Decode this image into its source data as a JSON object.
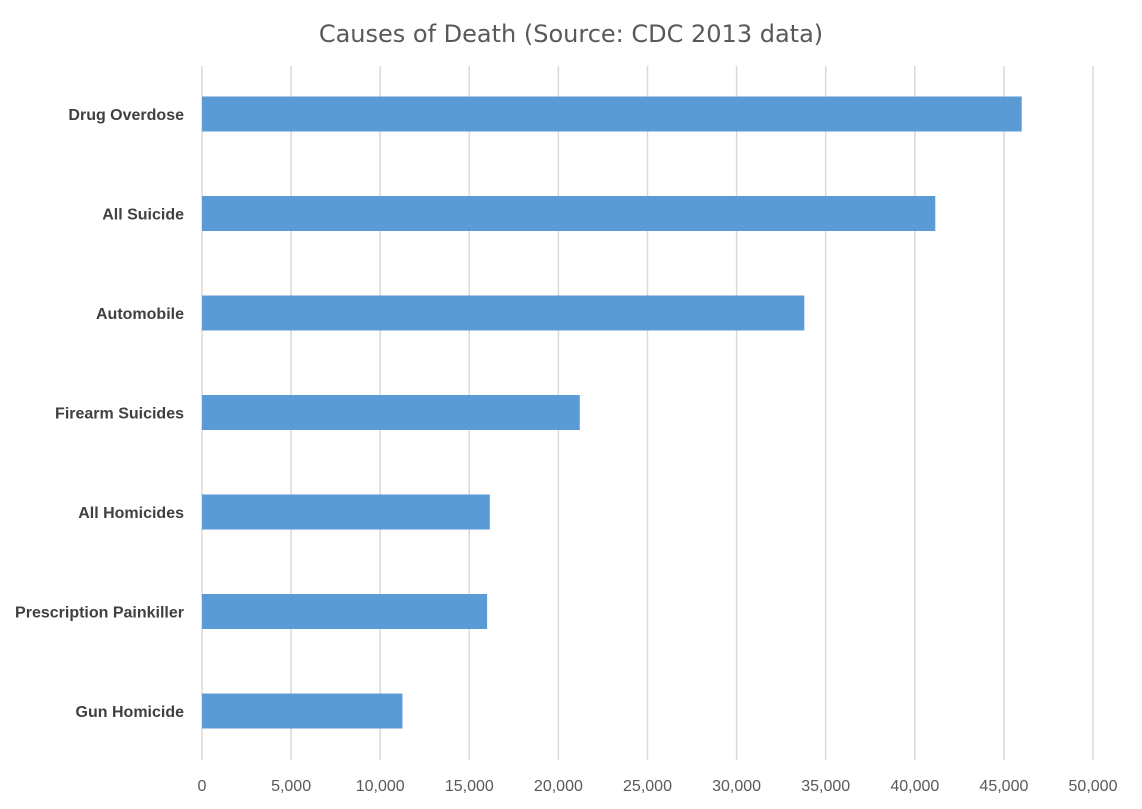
{
  "chart_data": {
    "type": "bar",
    "orientation": "horizontal",
    "title": "Causes of Death (Source: CDC 2013 data)",
    "xlabel": "",
    "ylabel": "",
    "categories": [
      "Drug Overdose",
      "All Suicide",
      "Automobile",
      "Firearm Suicides",
      "All Homicides",
      "Prescription Painkiller",
      "Gun Homicide"
    ],
    "values": [
      46000,
      41150,
      33800,
      21200,
      16150,
      16000,
      11250
    ],
    "xlim": [
      0,
      50000
    ],
    "ticks": [
      0,
      5000,
      10000,
      15000,
      20000,
      25000,
      30000,
      35000,
      40000,
      45000,
      50000
    ],
    "tick_labels": [
      "0",
      "5,000",
      "10,000",
      "15,000",
      "20,000",
      "25,000",
      "30,000",
      "35,000",
      "40,000",
      "45,000",
      "50,000"
    ],
    "grid": true,
    "legend": "none",
    "bar_color": "#5B9BD5"
  }
}
